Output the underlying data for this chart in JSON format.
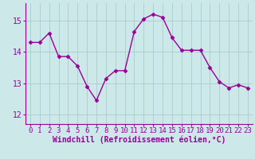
{
  "x": [
    0,
    1,
    2,
    3,
    4,
    5,
    6,
    7,
    8,
    9,
    10,
    11,
    12,
    13,
    14,
    15,
    16,
    17,
    18,
    19,
    20,
    21,
    22,
    23
  ],
  "y": [
    14.3,
    14.3,
    14.6,
    13.85,
    13.85,
    13.55,
    12.9,
    12.45,
    13.15,
    13.4,
    13.4,
    14.65,
    15.05,
    15.2,
    15.1,
    14.45,
    14.05,
    14.05,
    14.05,
    13.5,
    13.05,
    12.85,
    12.95,
    12.85
  ],
  "color": "#990099",
  "bg_color": "#cce8e8",
  "grid_color": "#aacccc",
  "xlabel": "Windchill (Refroidissement éolien,°C)",
  "xlabel_color": "#990099",
  "xlabel_fontsize": 7,
  "xtick_labels": [
    "0",
    "1",
    "2",
    "3",
    "4",
    "5",
    "6",
    "7",
    "8",
    "9",
    "10",
    "11",
    "12",
    "13",
    "14",
    "15",
    "16",
    "17",
    "18",
    "19",
    "20",
    "21",
    "22",
    "23"
  ],
  "yticks": [
    12,
    13,
    14,
    15
  ],
  "ylim": [
    11.7,
    15.55
  ],
  "xlim": [
    -0.5,
    23.5
  ],
  "marker": "D",
  "markersize": 2.5,
  "linewidth": 1.0,
  "tick_fontsize": 6.5,
  "tick_color": "#990099",
  "spine_color": "#990099"
}
